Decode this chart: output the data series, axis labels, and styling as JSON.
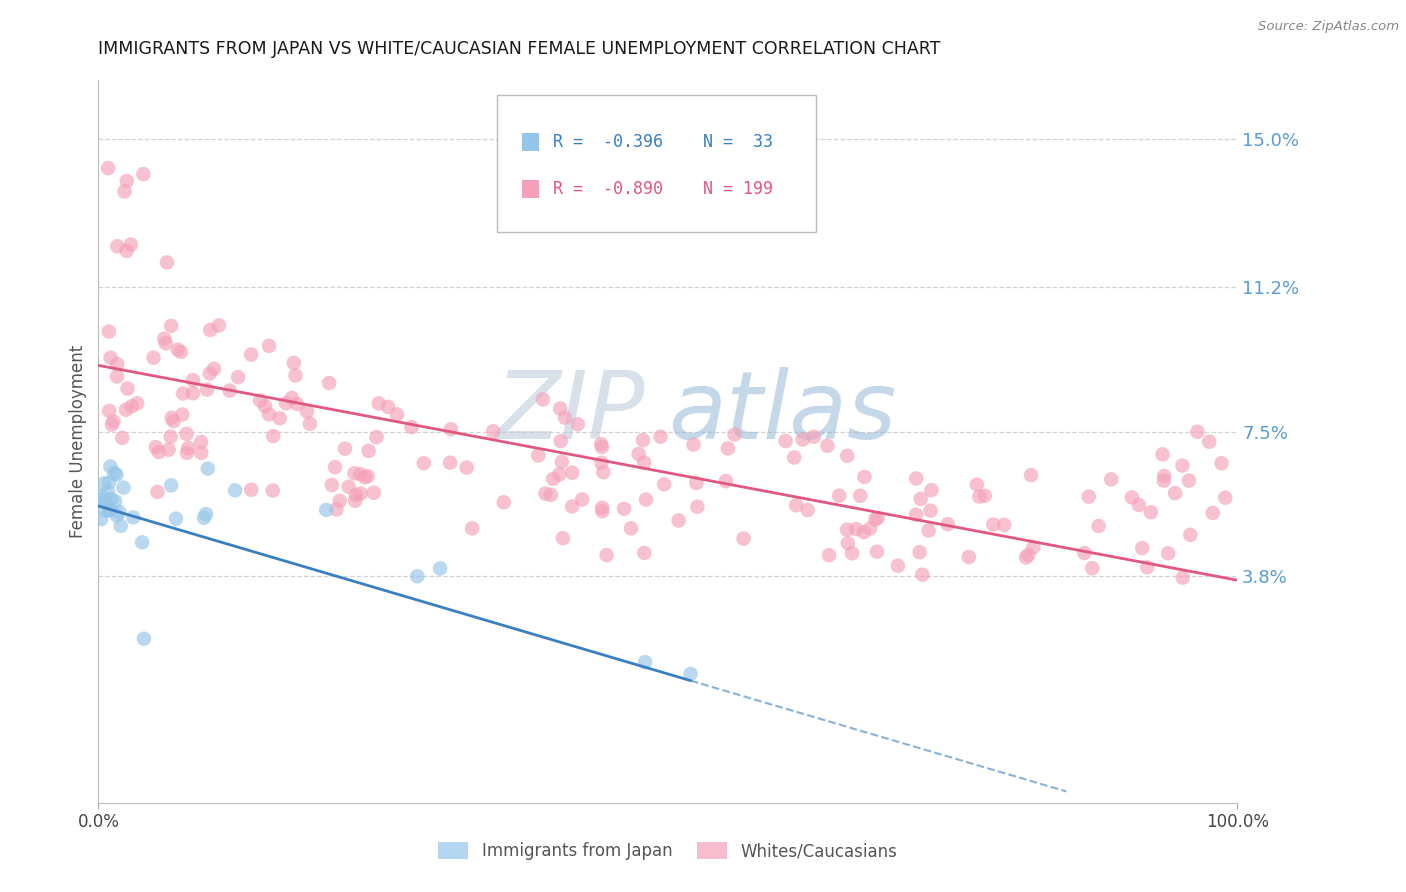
{
  "title": "IMMIGRANTS FROM JAPAN VS WHITE/CAUCASIAN FEMALE UNEMPLOYMENT CORRELATION CHART",
  "source": "Source: ZipAtlas.com",
  "ylabel": "Female Unemployment",
  "ytick_values": [
    0.038,
    0.075,
    0.112,
    0.15
  ],
  "ytick_labels": [
    "3.8%",
    "7.5%",
    "11.2%",
    "15.0%"
  ],
  "blue_scatter_color": "#95C5E8",
  "pink_scatter_color": "#F4A0B8",
  "blue_line_color": "#3A7FC1",
  "pink_line_color": "#E05880",
  "legend_label_blue": "Immigrants from Japan",
  "legend_label_pink": "Whites/Caucasians",
  "watermark_zip": "ZIP",
  "watermark_atlas": "atlas",
  "xmin": 0.0,
  "xmax": 1.0,
  "ymin": -0.02,
  "ymax": 0.165,
  "background_color": "#ffffff",
  "grid_color": "#c8c8c8",
  "title_color": "#1a1a1a",
  "axis_label_color": "#555555",
  "right_axis_color": "#5B9BD5",
  "source_color": "#888888",
  "watermark_zip_color": "#B8C8D8",
  "watermark_atlas_color": "#96B8D8"
}
